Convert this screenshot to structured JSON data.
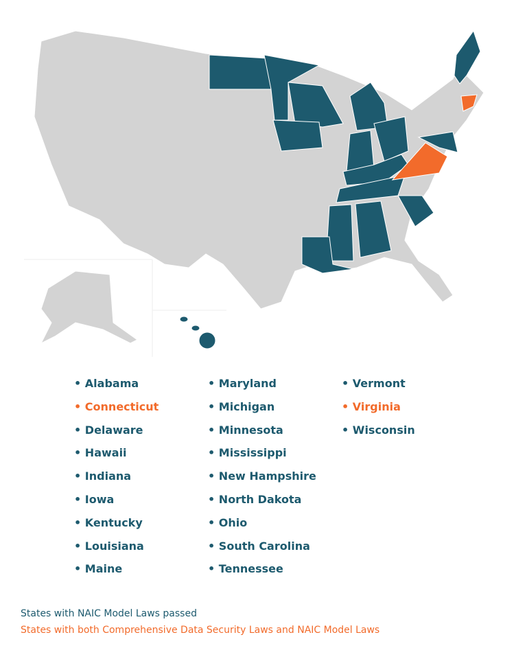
{
  "columns": [
    [
      {
        "name": "Alabama",
        "color": "#1d5a6e"
      },
      {
        "name": "Connecticut",
        "color": "#f26b2b"
      },
      {
        "name": "Delaware",
        "color": "#1d5a6e"
      },
      {
        "name": "Hawaii",
        "color": "#1d5a6e"
      },
      {
        "name": "Indiana",
        "color": "#1d5a6e"
      },
      {
        "name": "Iowa",
        "color": "#1d5a6e"
      },
      {
        "name": "Kentucky",
        "color": "#1d5a6e"
      },
      {
        "name": "Louisiana",
        "color": "#1d5a6e"
      },
      {
        "name": "Maine",
        "color": "#1d5a6e"
      }
    ],
    [
      {
        "name": "Maryland",
        "color": "#1d5a6e"
      },
      {
        "name": "Michigan",
        "color": "#1d5a6e"
      },
      {
        "name": "Minnesota",
        "color": "#1d5a6e"
      },
      {
        "name": "Mississippi",
        "color": "#1d5a6e"
      },
      {
        "name": "New Hampshire",
        "color": "#1d5a6e"
      },
      {
        "name": "North Dakota",
        "color": "#1d5a6e"
      },
      {
        "name": "Ohio",
        "color": "#1d5a6e"
      },
      {
        "name": "South Carolina",
        "color": "#1d5a6e"
      },
      {
        "name": "Tennessee",
        "color": "#1d5a6e"
      }
    ],
    [
      {
        "name": "Vermont",
        "color": "#1d5a6e"
      },
      {
        "name": "Virginia",
        "color": "#f26b2b"
      },
      {
        "name": "Wisconsin",
        "color": "#1d5a6e"
      }
    ]
  ],
  "legend": [
    {
      "text": "States with NAIC Model Laws passed",
      "color": "#1d5a6e"
    },
    {
      "text": "States with both Comprehensive Data Security Laws and NAIC Model Laws",
      "color": "#f26b2b"
    }
  ]
}
